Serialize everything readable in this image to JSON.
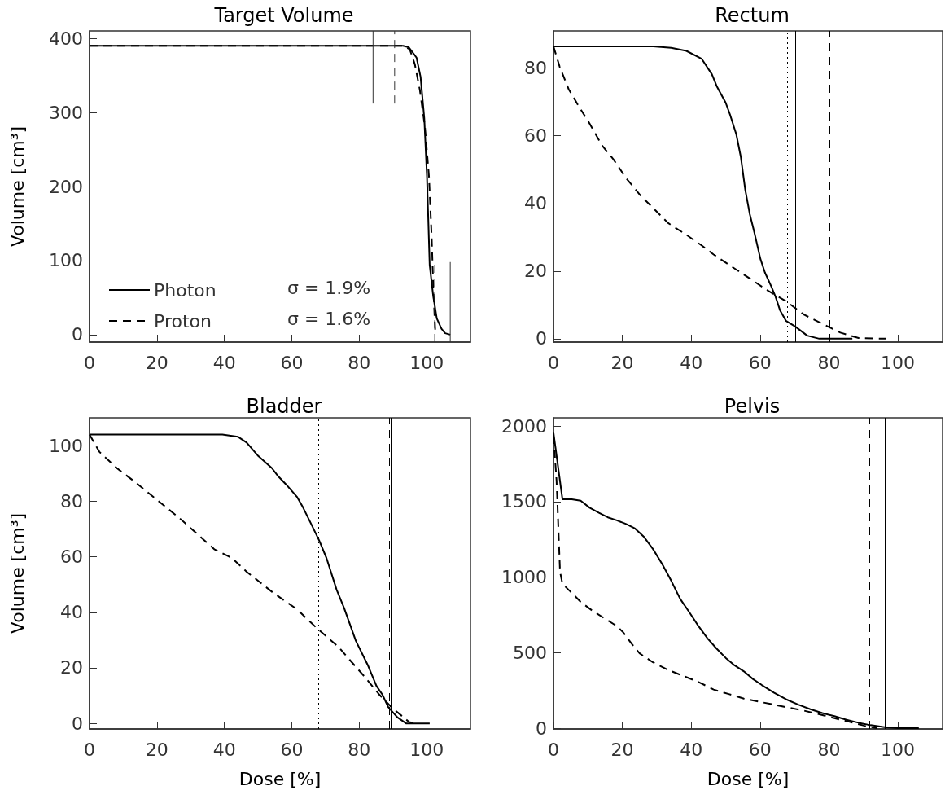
{
  "chart_data": [
    {
      "type": "line",
      "title": "Target Volume",
      "ylabel": "Volume [cm³]",
      "xlim": [
        0,
        113
      ],
      "xticks": [
        0,
        20,
        40,
        60,
        80,
        100
      ],
      "ylim": [
        -10,
        410
      ],
      "yticks": [
        0,
        100,
        200,
        300,
        400
      ],
      "grid": false,
      "legend": "bottom left",
      "marker": "none",
      "annotations": [
        "σ = 1.9%",
        "σ = 1.6%"
      ],
      "series": [
        {
          "name": "Photon",
          "color": "#000000",
          "line_style": "solid",
          "x": [
            0,
            93,
            94.7,
            97,
            98.2,
            99.3,
            100.1,
            100.9,
            101.9,
            103,
            104.4,
            105.5,
            107
          ],
          "values": [
            390,
            390,
            388,
            374,
            348,
            292,
            213,
            94,
            54,
            22,
            8,
            2,
            0
          ]
        },
        {
          "name": "Proton",
          "color": "#000000",
          "line_style": "dashed",
          "x": [
            0,
            93,
            95,
            96.5,
            98,
            99.5,
            100.7,
            101.5,
            102,
            102.6
          ],
          "values": [
            390,
            390,
            385,
            365,
            330,
            280,
            213,
            130,
            60,
            0
          ]
        },
        {
          "color": "#333333",
          "line_style": "solid",
          "x": [
            84.1,
            84.1
          ],
          "values": [
            312,
            410
          ]
        },
        {
          "color": "#333333",
          "line_style": "dashed",
          "x": [
            90.5,
            90.5
          ],
          "values": [
            312,
            410
          ]
        },
        {
          "color": "#333333",
          "line_style": "dashed",
          "x": [
            102.4,
            102.4
          ],
          "values": [
            -10,
            95
          ]
        },
        {
          "color": "#333333",
          "line_style": "solid",
          "x": [
            107,
            107
          ],
          "values": [
            -10,
            98
          ]
        }
      ]
    },
    {
      "type": "line",
      "title": "Rectum",
      "xlim": [
        0,
        113
      ],
      "xticks": [
        0,
        20,
        40,
        60,
        80,
        100
      ],
      "ylim": [
        -1,
        91
      ],
      "yticks": [
        0,
        20,
        40,
        60,
        80
      ],
      "grid": false,
      "marker": "none",
      "ref_lines": [
        {
          "axis": "x",
          "value": 68,
          "color": "#000000",
          "line_style": "dotted"
        },
        {
          "axis": "x",
          "value": 70.2,
          "color": "#000000",
          "line_style": "solid"
        },
        {
          "axis": "x",
          "value": 80.3,
          "color": "#000000",
          "line_style": "dashed"
        }
      ],
      "series": [
        {
          "color": "#000000",
          "line_style": "solid",
          "x": [
            0,
            29,
            34.2,
            38.6,
            43,
            46,
            47.4,
            50,
            51.3,
            53.1,
            54.4,
            55.7,
            57,
            58.3,
            60.1,
            61.4,
            63.2,
            64.5,
            65.8,
            67.5,
            70.2,
            73.7,
            77.2,
            86.8
          ],
          "values": [
            86.4,
            86.4,
            86,
            85.1,
            82.8,
            78.2,
            74.7,
            69.8,
            66.2,
            60.4,
            53.8,
            44,
            36.9,
            31.6,
            23.6,
            19.6,
            15.6,
            12.4,
            8.4,
            5.3,
            3.6,
            0.9,
            0,
            0
          ]
        },
        {
          "color": "#000000",
          "line_style": "dashed",
          "x": [
            0,
            1.8,
            4.4,
            7,
            10.5,
            14,
            17.5,
            21,
            25.4,
            28.9,
            33.3,
            38.6,
            43,
            46.5,
            51.8,
            57,
            62.3,
            67.5,
            72.8,
            78.1,
            83.3,
            88.6,
            96.5
          ],
          "values": [
            86.4,
            80.4,
            73.8,
            69.3,
            63.6,
            57.3,
            52.9,
            47.6,
            42.2,
            38.7,
            34.2,
            30.7,
            27.6,
            24.9,
            21.3,
            17.8,
            14.2,
            11.1,
            7.1,
            4.4,
            1.8,
            0.2,
            0
          ]
        }
      ]
    },
    {
      "type": "line",
      "title": "Bladder",
      "xlabel": "Dose [%]",
      "ylabel": "Volume [cm³]",
      "xlim": [
        0,
        113
      ],
      "xticks": [
        0,
        20,
        40,
        60,
        80,
        100
      ],
      "ylim": [
        -2,
        110
      ],
      "yticks": [
        0,
        20,
        40,
        60,
        80,
        100
      ],
      "grid": false,
      "marker": "none",
      "ref_lines": [
        {
          "axis": "x",
          "value": 67.9,
          "color": "#000000",
          "line_style": "dotted"
        },
        {
          "axis": "x",
          "value": 88.8,
          "color": "#000000",
          "line_style": "dashed"
        },
        {
          "axis": "x",
          "value": 89.3,
          "color": "#000000",
          "line_style": "solid"
        }
      ],
      "series": [
        {
          "color": "#000000",
          "line_style": "solid",
          "x": [
            0,
            39.4,
            44,
            46.6,
            50.1,
            54.1,
            55.8,
            58.4,
            61.5,
            63.3,
            65.9,
            68.1,
            70.3,
            73.3,
            75.5,
            79,
            82.5,
            85.1,
            86.9,
            88.6,
            91.3,
            93.9,
            100.9
          ],
          "values": [
            104,
            104,
            103.2,
            101.1,
            96.2,
            91.9,
            89.2,
            85.9,
            81.6,
            77.8,
            71.4,
            65.9,
            59.5,
            48.1,
            41.6,
            29.7,
            21.1,
            13.5,
            10.3,
            5.9,
            2.2,
            0,
            0
          ]
        },
        {
          "color": "#000000",
          "line_style": "dashed",
          "x": [
            0,
            2.9,
            8.1,
            13.4,
            22.1,
            26.5,
            37,
            42.3,
            46.6,
            54.5,
            61.5,
            67.6,
            73.8,
            77.3,
            81.6,
            86,
            89.5,
            94.8,
            96.5
          ],
          "values": [
            104,
            97.8,
            91.9,
            87,
            78.4,
            74.1,
            62.7,
            59.5,
            54.6,
            47,
            41.1,
            34.1,
            27.6,
            22.7,
            16.8,
            10.3,
            5.9,
            0.5,
            0
          ]
        }
      ]
    },
    {
      "type": "line",
      "title": "Pelvis",
      "xlabel": "Dose [%]",
      "xlim": [
        0,
        113
      ],
      "xticks": [
        0,
        20,
        40,
        60,
        80,
        100
      ],
      "ylim": [
        -5,
        2055
      ],
      "yticks": [
        0,
        500,
        1000,
        1500,
        2000
      ],
      "grid": false,
      "marker": "none",
      "ref_lines": [
        {
          "axis": "x",
          "value": 91.7,
          "color": "#000000",
          "line_style": "dashed"
        },
        {
          "axis": "x",
          "value": 96.3,
          "color": "#000000",
          "line_style": "solid"
        }
      ],
      "series": [
        {
          "color": "#000000",
          "line_style": "solid",
          "x": [
            0,
            2.6,
            5.3,
            7.9,
            10.5,
            13.2,
            15.8,
            18.4,
            21.1,
            23.7,
            26.3,
            28.9,
            31.6,
            34.2,
            36.8,
            39.5,
            42.1,
            44.7,
            47.4,
            50,
            52.6,
            55.3,
            57.9,
            60.5,
            64,
            67.5,
            71.1,
            74.6,
            78.1,
            81.6,
            85.1,
            88.6,
            92.1,
            96.5,
            100,
            106.1
          ],
          "values": [
            1956,
            1516,
            1516,
            1506,
            1460,
            1426,
            1396,
            1376,
            1352,
            1322,
            1266,
            1186,
            1086,
            976,
            856,
            766,
            676,
            596,
            526,
            466,
            416,
            376,
            326,
            286,
            236,
            192,
            156,
            126,
            100,
            80,
            56,
            36,
            20,
            6,
            0,
            0
          ]
        },
        {
          "color": "#000000",
          "line_style": "dashed",
          "x": [
            0,
            0.9,
            1.3,
            1.9,
            2.6,
            5.3,
            7.9,
            11.4,
            14.9,
            18.4,
            20.2,
            22.8,
            25,
            28.9,
            33.3,
            37.7,
            42.1,
            46.5,
            50.9,
            55.3,
            59.6,
            64,
            68.4,
            72.8,
            77.2,
            81.6,
            86,
            90.4,
            93.9
          ],
          "values": [
            1936,
            1636,
            1396,
            1036,
            956,
            896,
            836,
            776,
            726,
            676,
            636,
            556,
            496,
            436,
            386,
            346,
            306,
            256,
            226,
            196,
            176,
            156,
            136,
            116,
            92,
            66,
            42,
            16,
            0
          ]
        }
      ]
    }
  ]
}
